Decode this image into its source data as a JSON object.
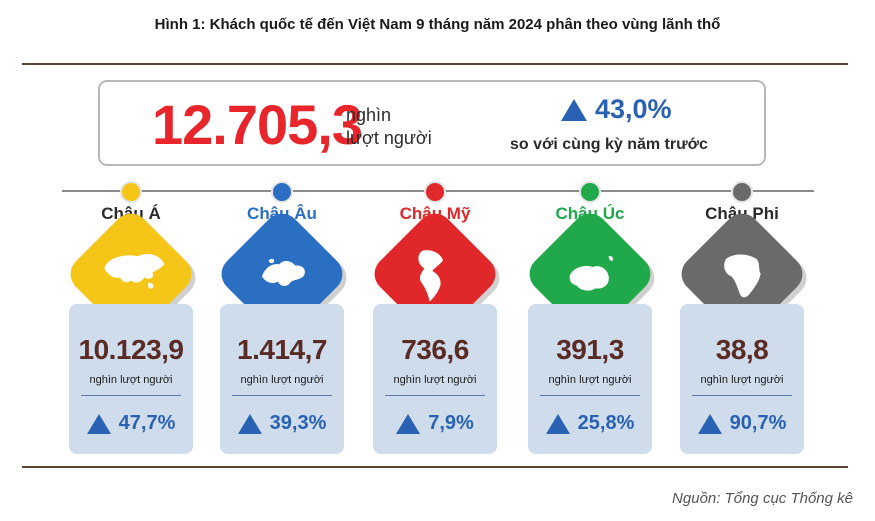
{
  "title": "Hình 1: Khách quốc tế đến Việt Nam 9 tháng năm 2024 phân theo vùng lãnh thổ",
  "summary": {
    "total": "12.705,3",
    "unit_line1": "nghìn",
    "unit_line2": "lượt người",
    "growth": "43,0%",
    "growth_caption": "so với cùng kỳ năm trước"
  },
  "source": "Nguồn: Tổng cục Thống kê",
  "colors": {
    "accent_red": "#e8252b",
    "growth_blue": "#2a62b3",
    "value_brown": "#5a2b24",
    "card_bg": "#cfdcec"
  },
  "regions": [
    {
      "name": "Châu Á",
      "value": "10.123,9",
      "unit": "nghìn lượt người",
      "growth": "47,7%",
      "color": "#f5c518",
      "name_color": "#2b2b2b",
      "icon": "asia-map-icon"
    },
    {
      "name": "Châu Âu",
      "value": "1.414,7",
      "unit": "nghìn lượt người",
      "growth": "39,3%",
      "color": "#2a6fc2",
      "name_color": "#2a6fc2",
      "icon": "europe-map-icon"
    },
    {
      "name": "Châu Mỹ",
      "value": "736,6",
      "unit": "nghìn lượt người",
      "growth": "7,9%",
      "color": "#e0282a",
      "name_color": "#e0282a",
      "icon": "americas-map-icon"
    },
    {
      "name": "Châu Úc",
      "value": "391,3",
      "unit": "nghìn lượt người",
      "growth": "25,8%",
      "color": "#1fa94a",
      "name_color": "#1fa94a",
      "icon": "oceania-map-icon"
    },
    {
      "name": "Châu Phi",
      "value": "38,8",
      "unit": "nghìn lượt người",
      "growth": "90,7%",
      "color": "#6a6a6a",
      "name_color": "#2b2b2b",
      "icon": "africa-map-icon"
    }
  ],
  "chart_data": {
    "type": "table",
    "title": "Hình 1: Khách quốc tế đến Việt Nam 9 tháng năm 2024 phân theo vùng lãnh thổ",
    "total": 12705.3,
    "total_growth_percent": 43.0,
    "unit": "nghìn lượt người",
    "categories": [
      "Châu Á",
      "Châu Âu",
      "Châu Mỹ",
      "Châu Úc",
      "Châu Phi"
    ],
    "series": [
      {
        "name": "",
        "values": [
          10123.9,
          1414.7,
          736.6,
          391.3,
          38.8
        ]
      },
      {
        "name": "",
        "values": [
          47.7,
          39.3,
          7.9,
          25.8,
          90.7
        ]
      }
    ]
  }
}
